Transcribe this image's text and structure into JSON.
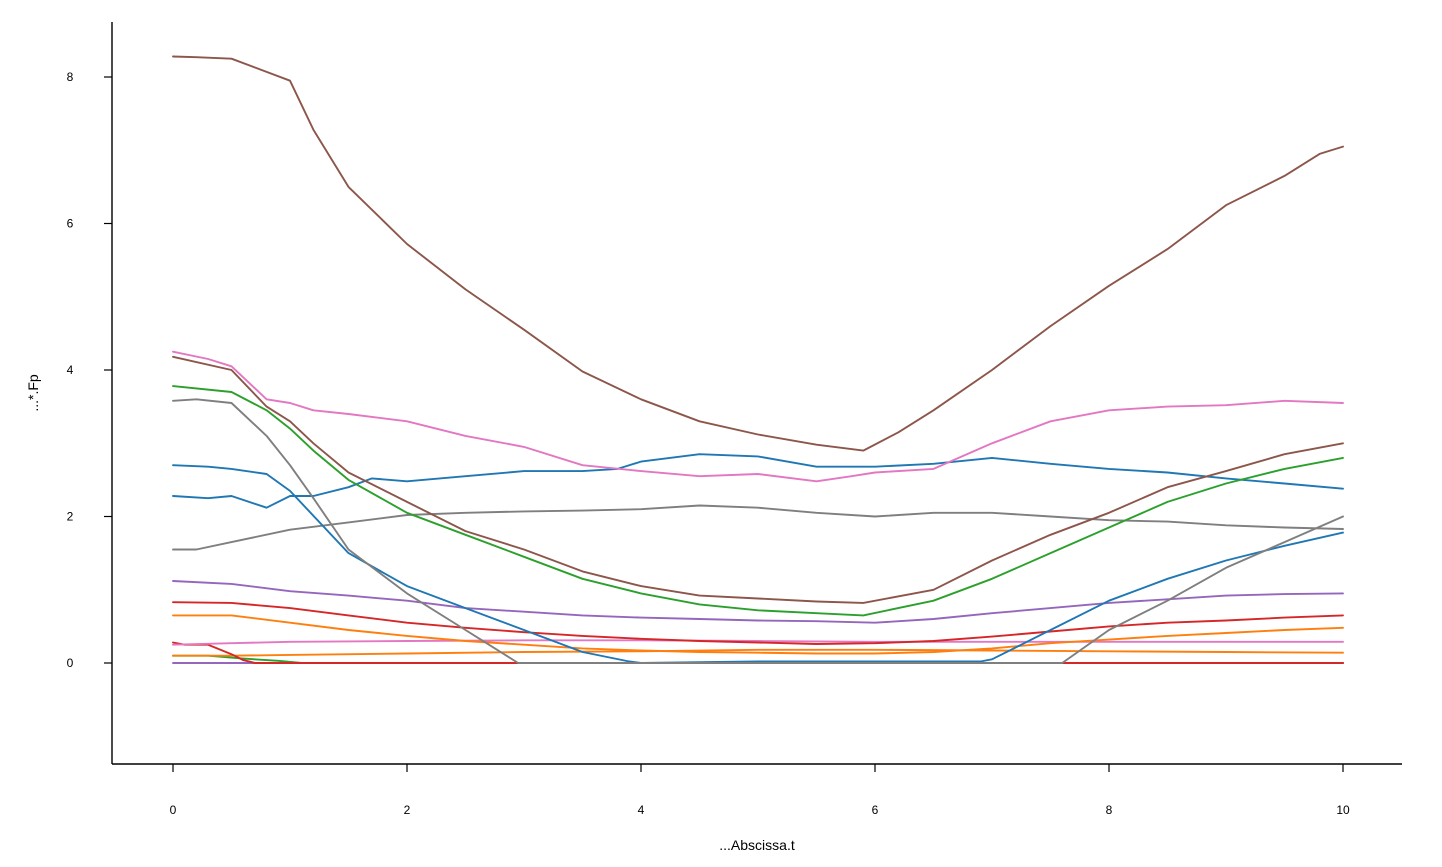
{
  "chart_data": {
    "type": "line",
    "xlabel": "...Abscissa.t",
    "ylabel": "...*.Fp",
    "xlim": [
      -0.5,
      10.5
    ],
    "ylim": [
      -1.4,
      8.9
    ],
    "x_ticks": [
      0,
      2,
      4,
      6,
      8,
      10
    ],
    "y_ticks": [
      0,
      2,
      4,
      6,
      8
    ],
    "x_tick_labels": [
      "0",
      "2",
      "4",
      "6",
      "8",
      "10"
    ],
    "y_tick_labels": [
      "0",
      "2",
      "4",
      "6",
      "8"
    ],
    "grid": false,
    "legend": "none",
    "series": [
      {
        "color": "#8c564b",
        "x": [
          0,
          0.2,
          0.5,
          0.8,
          1.0,
          1.2,
          1.5,
          2.0,
          2.5,
          3.0,
          3.5,
          4.0,
          4.5,
          5.0,
          5.5,
          5.9,
          6.2,
          6.5,
          7.0,
          7.5,
          8.0,
          8.5,
          9.0,
          9.5,
          9.8,
          10.0
        ],
        "y": [
          8.28,
          8.27,
          8.25,
          8.07,
          7.95,
          7.28,
          6.5,
          5.72,
          5.1,
          4.55,
          3.98,
          3.6,
          3.3,
          3.12,
          2.98,
          2.9,
          3.15,
          3.45,
          4.0,
          4.6,
          5.15,
          5.65,
          6.25,
          6.65,
          6.95,
          7.05
        ]
      },
      {
        "color": "#8c564b",
        "x": [
          0,
          0.5,
          0.8,
          1.0,
          1.2,
          1.5,
          2.0,
          2.5,
          3.0,
          3.5,
          4.0,
          4.5,
          5.0,
          5.5,
          5.9,
          6.5,
          7.0,
          7.5,
          8.0,
          8.5,
          9.0,
          9.5,
          10.0
        ],
        "y": [
          4.18,
          4.0,
          3.5,
          3.3,
          3.0,
          2.6,
          2.2,
          1.8,
          1.55,
          1.25,
          1.05,
          0.92,
          0.88,
          0.84,
          0.82,
          1.0,
          1.4,
          1.75,
          2.05,
          2.4,
          2.62,
          2.85,
          3.0
        ]
      },
      {
        "color": "#e377c2",
        "x": [
          0,
          0.3,
          0.5,
          0.8,
          1.0,
          1.2,
          1.5,
          2.0,
          2.5,
          3.0,
          3.5,
          4.0,
          4.5,
          5.0,
          5.5,
          5.8,
          6.0,
          6.5,
          7.0,
          7.5,
          8.0,
          8.5,
          9.0,
          9.5,
          10.0
        ],
        "y": [
          4.25,
          4.15,
          4.05,
          3.6,
          3.55,
          3.45,
          3.4,
          3.3,
          3.1,
          2.95,
          2.7,
          2.62,
          2.55,
          2.58,
          2.48,
          2.55,
          2.6,
          2.65,
          3.0,
          3.3,
          3.45,
          3.5,
          3.52,
          3.58,
          3.55
        ]
      },
      {
        "color": "#2ca02c",
        "x": [
          0,
          0.5,
          0.8,
          1.0,
          1.2,
          1.5,
          2.0,
          2.5,
          3.0,
          3.5,
          4.0,
          4.5,
          5.0,
          5.5,
          5.9,
          6.5,
          7.0,
          7.5,
          8.0,
          8.5,
          9.0,
          9.5,
          10.0
        ],
        "y": [
          3.78,
          3.7,
          3.45,
          3.2,
          2.9,
          2.5,
          2.05,
          1.75,
          1.45,
          1.15,
          0.95,
          0.8,
          0.72,
          0.68,
          0.65,
          0.85,
          1.15,
          1.5,
          1.85,
          2.2,
          2.45,
          2.65,
          2.8
        ]
      },
      {
        "color": "#7f7f7f",
        "x": [
          0,
          0.2,
          0.5,
          0.8,
          1.0,
          1.2,
          1.5,
          2.0,
          2.5,
          2.95,
          3.0,
          7.6,
          8.0,
          8.5,
          9.0,
          9.5,
          10.0
        ],
        "y": [
          3.58,
          3.6,
          3.55,
          3.1,
          2.7,
          2.25,
          1.55,
          0.95,
          0.45,
          0.0,
          0.0,
          0.0,
          0.45,
          0.85,
          1.3,
          1.65,
          2.0
        ]
      },
      {
        "color": "#1f77b4",
        "x": [
          0,
          0.3,
          0.5,
          0.8,
          1.0,
          1.5,
          2.0,
          2.5,
          3.0,
          3.5,
          3.9,
          4.0,
          5.0,
          6.0,
          6.9,
          7.0,
          7.5,
          8.0,
          8.5,
          9.0,
          9.5,
          10.0
        ],
        "y": [
          2.7,
          2.68,
          2.65,
          2.58,
          2.35,
          1.5,
          1.05,
          0.75,
          0.45,
          0.15,
          0.02,
          0.0,
          0.02,
          0.02,
          0.02,
          0.05,
          0.45,
          0.85,
          1.15,
          1.4,
          1.6,
          1.78
        ]
      },
      {
        "color": "#1f77b4",
        "x": [
          0,
          0.3,
          0.5,
          0.8,
          1.0,
          1.2,
          1.5,
          1.7,
          2.0,
          2.5,
          3.0,
          3.5,
          3.8,
          4.0,
          4.5,
          5.0,
          5.5,
          6.0,
          6.5,
          7.0,
          7.5,
          8.0,
          8.5,
          9.0,
          9.5,
          10.0
        ],
        "y": [
          2.28,
          2.25,
          2.28,
          2.12,
          2.28,
          2.28,
          2.4,
          2.52,
          2.48,
          2.55,
          2.62,
          2.62,
          2.65,
          2.75,
          2.85,
          2.82,
          2.68,
          2.68,
          2.72,
          2.8,
          2.72,
          2.65,
          2.6,
          2.52,
          2.45,
          2.38
        ]
      },
      {
        "color": "#7f7f7f",
        "x": [
          0,
          0.2,
          0.5,
          1.0,
          1.5,
          2.0,
          2.5,
          3.0,
          3.5,
          4.0,
          4.5,
          5.0,
          5.5,
          6.0,
          6.5,
          7.0,
          7.5,
          8.0,
          8.5,
          9.0,
          9.5,
          10.0
        ],
        "y": [
          1.55,
          1.55,
          1.65,
          1.82,
          1.92,
          2.02,
          2.05,
          2.07,
          2.08,
          2.1,
          2.15,
          2.12,
          2.05,
          2.0,
          2.05,
          2.05,
          2.0,
          1.95,
          1.93,
          1.88,
          1.85,
          1.83
        ]
      },
      {
        "color": "#9467bd",
        "x": [
          0,
          0.5,
          1.0,
          1.5,
          2.0,
          2.5,
          3.0,
          3.5,
          4.0,
          4.5,
          5.0,
          5.5,
          6.0,
          6.5,
          7.0,
          7.5,
          8.0,
          8.5,
          9.0,
          9.5,
          10.0
        ],
        "y": [
          1.12,
          1.08,
          0.98,
          0.92,
          0.85,
          0.75,
          0.7,
          0.65,
          0.62,
          0.6,
          0.58,
          0.57,
          0.55,
          0.6,
          0.68,
          0.75,
          0.82,
          0.87,
          0.92,
          0.94,
          0.95
        ]
      },
      {
        "color": "#d62728",
        "x": [
          0,
          0.5,
          1.0,
          1.5,
          2.0,
          2.5,
          3.0,
          3.5,
          4.0,
          4.5,
          5.0,
          5.5,
          6.0,
          6.5,
          7.0,
          7.5,
          8.0,
          8.5,
          9.0,
          9.5,
          10.0
        ],
        "y": [
          0.83,
          0.82,
          0.75,
          0.65,
          0.55,
          0.48,
          0.42,
          0.37,
          0.33,
          0.3,
          0.28,
          0.26,
          0.27,
          0.3,
          0.36,
          0.43,
          0.5,
          0.55,
          0.58,
          0.62,
          0.65
        ]
      },
      {
        "color": "#ff7f0e",
        "x": [
          0,
          0.5,
          1.0,
          1.5,
          2.0,
          2.5,
          3.0,
          3.5,
          4.0,
          4.5,
          5.0,
          5.5,
          6.0,
          6.5,
          7.0,
          7.5,
          8.0,
          8.5,
          9.0,
          9.5,
          10.0
        ],
        "y": [
          0.65,
          0.65,
          0.55,
          0.45,
          0.37,
          0.3,
          0.25,
          0.2,
          0.17,
          0.15,
          0.14,
          0.13,
          0.13,
          0.15,
          0.2,
          0.27,
          0.32,
          0.37,
          0.41,
          0.45,
          0.48
        ]
      },
      {
        "color": "#e377c2",
        "x": [
          0,
          0.5,
          1.0,
          2.0,
          3.0,
          4.0,
          5.0,
          6.0,
          7.0,
          8.0,
          9.0,
          10.0
        ],
        "y": [
          0.25,
          0.27,
          0.29,
          0.3,
          0.31,
          0.31,
          0.3,
          0.29,
          0.29,
          0.29,
          0.29,
          0.29
        ]
      },
      {
        "color": "#d62728",
        "x": [
          0,
          0.1,
          0.3,
          0.5,
          0.6,
          0.7,
          1.0,
          2.0,
          10.0
        ],
        "y": [
          0.28,
          0.25,
          0.25,
          0.12,
          0.04,
          0.0,
          0.0,
          0.0,
          0.0
        ]
      },
      {
        "color": "#ff7f0e",
        "x": [
          0,
          0.5,
          1.0,
          2.0,
          3.0,
          4.0,
          5.0,
          6.0,
          7.0,
          8.0,
          9.0,
          10.0
        ],
        "y": [
          0.1,
          0.1,
          0.11,
          0.13,
          0.15,
          0.16,
          0.18,
          0.18,
          0.17,
          0.16,
          0.15,
          0.14
        ]
      },
      {
        "color": "#2ca02c",
        "x": [
          0,
          0.3,
          0.6,
          0.9,
          1.1,
          2.0,
          10.0
        ],
        "y": [
          0.1,
          0.1,
          0.06,
          0.03,
          0.0,
          0.0,
          0.0
        ]
      },
      {
        "color": "#9467bd",
        "x": [
          0,
          10.0
        ],
        "y": [
          0.0,
          0.0
        ]
      }
    ]
  }
}
